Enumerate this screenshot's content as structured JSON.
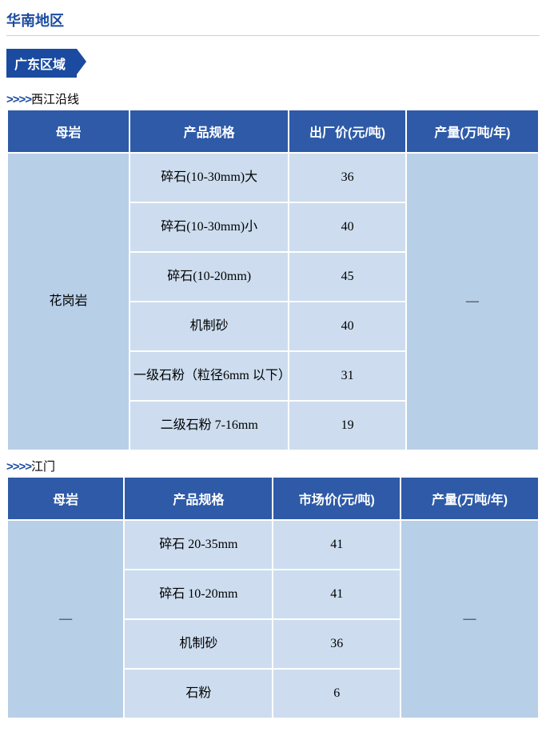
{
  "region_title": "华南地区",
  "area_label": "广东区域",
  "chevron": ">>>>",
  "sections": [
    {
      "route_name": "西江沿线",
      "columns": [
        "母岩",
        "产品规格",
        "出厂价(元/吨)",
        "产量(万吨/年)"
      ],
      "col_widths": [
        "23%",
        "30%",
        "22%",
        "25%"
      ],
      "rock_label": "花岗岩",
      "prod_label": "—",
      "rows": [
        {
          "spec": "碎石(10-30mm)大",
          "price": "36"
        },
        {
          "spec": "碎石(10-30mm)小",
          "price": "40"
        },
        {
          "spec": "碎石(10-20mm)",
          "price": "45"
        },
        {
          "spec": "机制砂",
          "price": "40"
        },
        {
          "spec": "一级石粉（粒径6mm 以下）",
          "price": "31"
        },
        {
          "spec": "二级石粉 7-16mm",
          "price": "19"
        }
      ]
    },
    {
      "route_name": "江门",
      "columns": [
        "母岩",
        "产品规格",
        "市场价(元/吨)",
        "产量(万吨/年)"
      ],
      "col_widths": [
        "22%",
        "28%",
        "24%",
        "26%"
      ],
      "rock_label": "—",
      "prod_label": "—",
      "rows": [
        {
          "spec": "碎石 20-35mm",
          "price": "41"
        },
        {
          "spec": "碎石 10-20mm",
          "price": "41"
        },
        {
          "spec": "机制砂",
          "price": "36"
        },
        {
          "spec": "石粉",
          "price": "6"
        }
      ]
    }
  ]
}
